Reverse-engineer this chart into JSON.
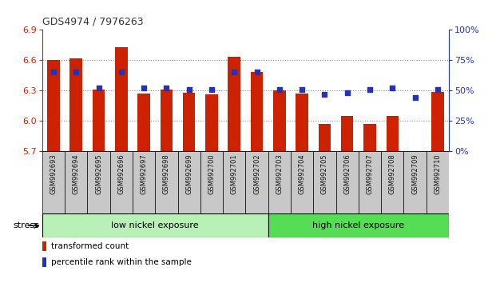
{
  "title": "GDS4974 / 7976263",
  "samples": [
    "GSM992693",
    "GSM992694",
    "GSM992695",
    "GSM992696",
    "GSM992697",
    "GSM992698",
    "GSM992699",
    "GSM992700",
    "GSM992701",
    "GSM992702",
    "GSM992703",
    "GSM992704",
    "GSM992705",
    "GSM992706",
    "GSM992707",
    "GSM992708",
    "GSM992709",
    "GSM992710"
  ],
  "transformed_count": [
    6.6,
    6.62,
    6.31,
    6.73,
    6.27,
    6.31,
    6.28,
    6.26,
    6.63,
    6.48,
    6.3,
    6.27,
    5.97,
    6.05,
    5.97,
    6.05,
    5.7,
    6.29
  ],
  "percentile_rank": [
    65,
    65,
    52,
    65,
    52,
    52,
    51,
    51,
    65,
    65,
    51,
    51,
    47,
    48,
    51,
    52,
    44,
    51
  ],
  "ylim_left": [
    5.7,
    6.9
  ],
  "ylim_right": [
    0,
    100
  ],
  "yticks_left": [
    5.7,
    6.0,
    6.3,
    6.6,
    6.9
  ],
  "yticks_right": [
    0,
    25,
    50,
    75,
    100
  ],
  "ytick_labels_right": [
    "0%",
    "25%",
    "50%",
    "75%",
    "100%"
  ],
  "bar_color": "#cc2200",
  "dot_color": "#2233bb",
  "bar_bottom": 5.7,
  "group1_label": "low nickel exposure",
  "group2_label": "high nickel exposure",
  "group1_color": "#b8f0b8",
  "group2_color": "#55dd55",
  "group1_count": 10,
  "group2_count": 8,
  "stress_label": "stress",
  "legend_bar": "transformed count",
  "legend_dot": "percentile rank within the sample",
  "grid_color": "#888888",
  "label_color_left": "#cc2200",
  "label_color_right": "#2233bb",
  "title_color": "#333333",
  "xtick_bg": "#c8c8c8"
}
